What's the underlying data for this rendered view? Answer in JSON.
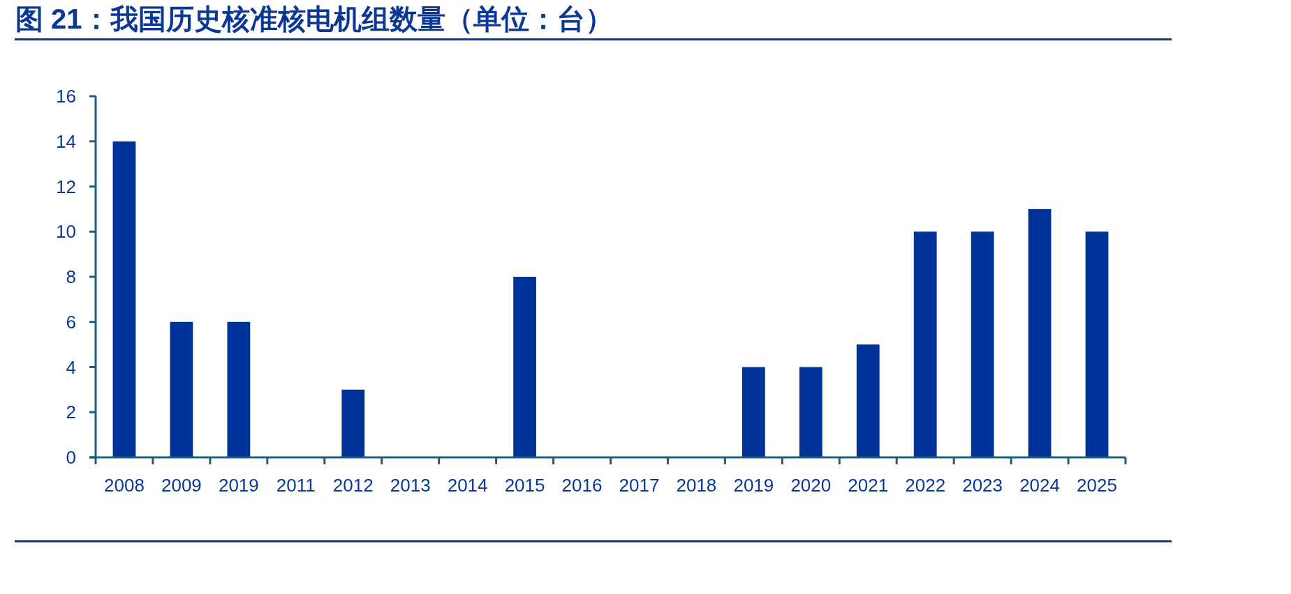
{
  "chart_data": {
    "type": "bar",
    "title": "图 21：我国历史核准核电机组数量（单位：台）",
    "categories": [
      "2008",
      "2009",
      "2019",
      "2011",
      "2012",
      "2013",
      "2014",
      "2015",
      "2016",
      "2017",
      "2018",
      "2019",
      "2020",
      "2021",
      "2022",
      "2023",
      "2024",
      "2025"
    ],
    "values": [
      14,
      6,
      6,
      0,
      3,
      0,
      0,
      8,
      0,
      0,
      0,
      4,
      4,
      5,
      10,
      10,
      11,
      10
    ],
    "color": "#003399",
    "ylim": [
      0,
      16
    ],
    "yticks": [
      0,
      2,
      4,
      6,
      8,
      10,
      12,
      14,
      16
    ]
  }
}
